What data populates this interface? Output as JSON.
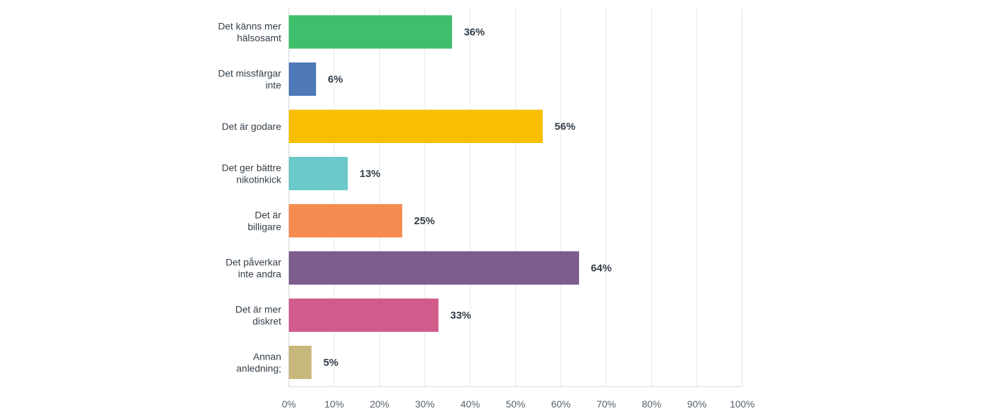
{
  "chart_data": {
    "type": "bar",
    "orientation": "horizontal",
    "categories": [
      [
        "Det känns mer",
        "hälsosamt"
      ],
      [
        "Det missfärgar",
        "inte"
      ],
      [
        "Det är godare"
      ],
      [
        "Det ger bättre",
        "nikotinkick"
      ],
      [
        "Det är",
        "billigare"
      ],
      [
        "Det påverkar",
        "inte andra"
      ],
      [
        "Det är mer",
        "diskret"
      ],
      [
        "Annan",
        "anledning;"
      ]
    ],
    "values": [
      36,
      6,
      56,
      13,
      25,
      64,
      33,
      5
    ],
    "value_labels": [
      "36%",
      "6%",
      "56%",
      "13%",
      "25%",
      "64%",
      "33%",
      "5%"
    ],
    "colors": [
      "#3fbf6c",
      "#4e79b8",
      "#f7bf00",
      "#6bc9ca",
      "#f68b50",
      "#7d5c8e",
      "#d15c8c",
      "#c8b87c"
    ],
    "xlim": [
      0,
      100
    ],
    "xticks": [
      "0%",
      "10%",
      "20%",
      "30%",
      "40%",
      "50%",
      "60%",
      "70%",
      "80%",
      "90%",
      "100%"
    ],
    "grid": true,
    "title": "",
    "xlabel": "",
    "ylabel": ""
  }
}
